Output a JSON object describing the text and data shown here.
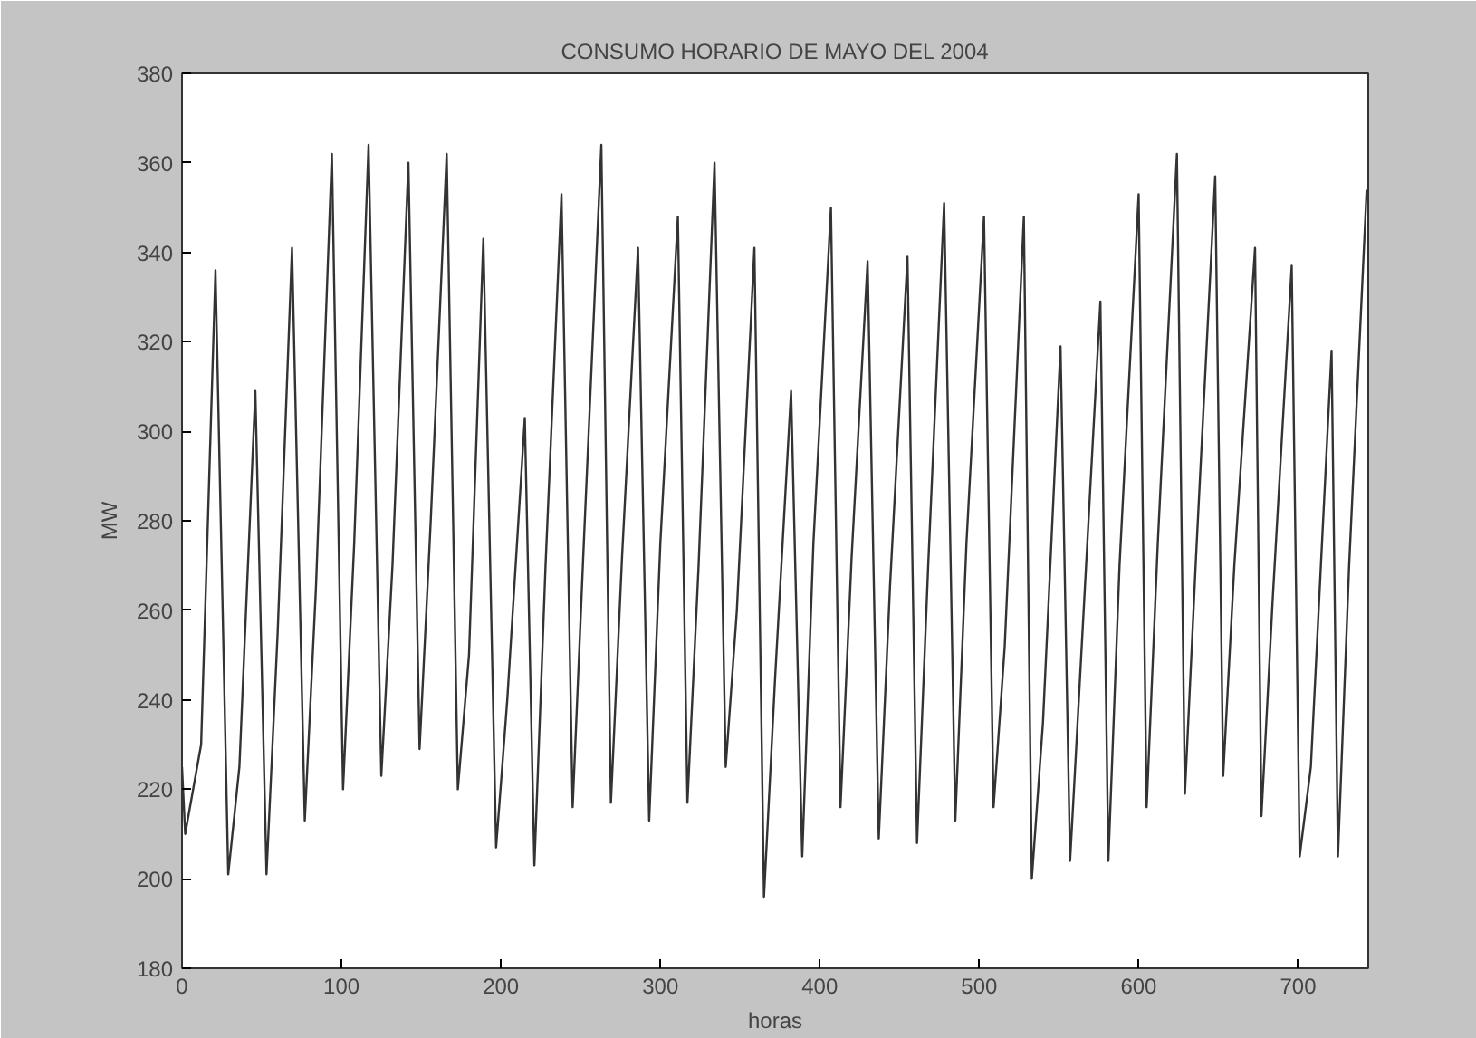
{
  "chart_data": {
    "type": "line",
    "title": "CONSUMO HORARIO DE MAYO DEL 2004",
    "xlabel": "horas",
    "ylabel": "MW",
    "x": [
      0,
      2,
      12,
      21,
      29,
      36,
      46,
      53,
      60,
      69,
      77,
      84,
      94,
      101,
      108,
      117,
      125,
      132,
      142,
      149,
      156,
      166,
      173,
      180,
      189,
      197,
      204,
      215,
      221,
      228,
      238,
      245,
      252,
      263,
      269,
      276,
      286,
      293,
      300,
      311,
      317,
      324,
      334,
      341,
      348,
      359,
      365,
      372,
      382,
      389,
      396,
      407,
      413,
      420,
      430,
      437,
      444,
      455,
      461,
      468,
      478,
      485,
      492,
      503,
      509,
      516,
      528,
      533,
      540,
      551,
      557,
      564,
      576,
      581,
      588,
      600,
      605,
      612,
      624,
      629,
      636,
      648,
      653,
      660,
      673,
      677,
      684,
      696,
      701,
      708,
      721,
      725,
      732,
      743
    ],
    "series": [
      {
        "color": "#333333",
        "values": [
          225,
          210,
          230,
          336,
          201,
          225,
          309,
          201,
          255,
          341,
          213,
          265,
          362,
          220,
          275,
          364,
          223,
          270,
          360,
          229,
          280,
          362,
          220,
          250,
          343,
          207,
          240,
          303,
          203,
          270,
          353,
          216,
          275,
          364,
          217,
          272,
          341,
          213,
          275,
          348,
          217,
          270,
          360,
          225,
          260,
          341,
          196,
          245,
          309,
          205,
          275,
          350,
          216,
          272,
          338,
          209,
          265,
          339,
          208,
          270,
          351,
          213,
          275,
          348,
          216,
          252,
          348,
          200,
          235,
          319,
          204,
          250,
          329,
          204,
          270,
          353,
          216,
          275,
          362,
          219,
          272,
          357,
          223,
          270,
          341,
          214,
          262,
          337,
          205,
          225,
          318,
          205,
          270,
          354
        ]
      }
    ],
    "xlim": [
      0,
      744
    ],
    "ylim": [
      180,
      380
    ],
    "xticks": [
      0,
      100,
      200,
      300,
      400,
      500,
      600,
      700
    ],
    "yticks": [
      180,
      200,
      220,
      240,
      260,
      280,
      300,
      320,
      340,
      360,
      380
    ],
    "grid": false,
    "marker": "none",
    "line_style": "solid"
  }
}
